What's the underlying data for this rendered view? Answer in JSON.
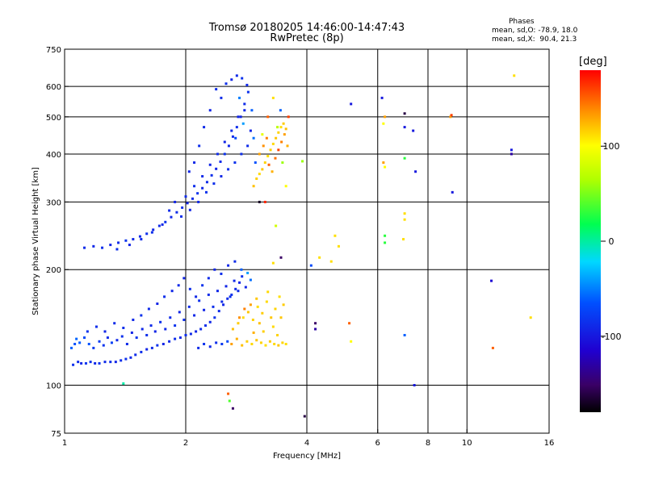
{
  "header": {
    "title": "Tromsø 20180205 14:46:00-14:47:43",
    "subtitle": "RwPretec (8p)"
  },
  "phase_stats": {
    "heading": "Phases",
    "line_o": "mean, sd,O: -78.9, 18.0",
    "line_x": "mean, sd,X:  90.4, 21.3"
  },
  "colorbar": {
    "unit": "[deg]",
    "ticks": [
      {
        "value": 100,
        "label": "100"
      },
      {
        "value": 0,
        "label": "0"
      },
      {
        "value": -100,
        "label": "-100"
      }
    ],
    "range": [
      -180,
      180
    ]
  },
  "chart_data": {
    "type": "scatter",
    "title": "Tromsø 20180205 14:46:00-14:47:43",
    "subtitle": "RwPretec (8p)",
    "xlabel": "Frequency [MHz]",
    "ylabel": "Stationary phase Virtual Height [km]",
    "xscale": "log",
    "yscale": "log",
    "xlim": [
      1,
      16
    ],
    "ylim": [
      75,
      750
    ],
    "xticks": [
      {
        "value": 1,
        "label": "1"
      },
      {
        "value": 2,
        "label": "2"
      },
      {
        "value": 4,
        "label": "4"
      },
      {
        "value": 6,
        "label": "6"
      },
      {
        "value": 8,
        "label": "8"
      },
      {
        "value": 10,
        "label": "10"
      },
      {
        "value": 16,
        "label": "16"
      }
    ],
    "yticks": [
      {
        "value": 75,
        "label": "75"
      },
      {
        "value": 100,
        "label": "100"
      },
      {
        "value": 200,
        "label": "200"
      },
      {
        "value": 300,
        "label": "300"
      },
      {
        "value": 400,
        "label": "400"
      },
      {
        "value": 500,
        "label": "500"
      },
      {
        "value": 600,
        "label": "600"
      },
      {
        "value": 750,
        "label": "750"
      }
    ],
    "grid": true,
    "color_scale": "phase [deg], -180 (black) to 180 (red)",
    "points": [
      [
        1.05,
        113,
        -85
      ],
      [
        1.08,
        115,
        -88
      ],
      [
        1.1,
        114,
        -90
      ],
      [
        1.13,
        114,
        -82
      ],
      [
        1.16,
        115,
        -86
      ],
      [
        1.19,
        114,
        -90
      ],
      [
        1.22,
        114,
        -84
      ],
      [
        1.26,
        115,
        -88
      ],
      [
        1.3,
        115,
        -86
      ],
      [
        1.34,
        115,
        -92
      ],
      [
        1.38,
        116,
        -87
      ],
      [
        1.42,
        117,
        -85
      ],
      [
        1.46,
        118,
        -90
      ],
      [
        1.5,
        120,
        -88
      ],
      [
        1.55,
        122,
        -86
      ],
      [
        1.6,
        124,
        -92
      ],
      [
        1.65,
        125,
        -89
      ],
      [
        1.7,
        127,
        -84
      ],
      [
        1.76,
        128,
        -91
      ],
      [
        1.82,
        130,
        -88
      ],
      [
        1.88,
        132,
        -87
      ],
      [
        1.94,
        133,
        -90
      ],
      [
        2.0,
        135,
        -86
      ],
      [
        2.06,
        136,
        -89
      ],
      [
        2.12,
        138,
        -92
      ],
      [
        2.18,
        140,
        -88
      ],
      [
        2.24,
        143,
        -86
      ],
      [
        2.3,
        146,
        -90
      ],
      [
        2.36,
        150,
        -85
      ],
      [
        2.42,
        156,
        -88
      ],
      [
        2.48,
        162,
        -91
      ],
      [
        2.54,
        168,
        -87
      ],
      [
        2.6,
        172,
        -84
      ],
      [
        2.66,
        178,
        -89
      ],
      [
        2.72,
        185,
        -92
      ],
      [
        1.04,
        125,
        -60
      ],
      [
        1.06,
        128,
        -65
      ],
      [
        1.07,
        132,
        -58
      ],
      [
        1.09,
        129,
        -62
      ],
      [
        1.12,
        133,
        -70
      ],
      [
        1.15,
        128,
        -64
      ],
      [
        1.18,
        125,
        -80
      ],
      [
        1.22,
        130,
        -78
      ],
      [
        1.25,
        127,
        -82
      ],
      [
        1.28,
        133,
        -88
      ],
      [
        1.31,
        129,
        -75
      ],
      [
        1.35,
        131,
        -90
      ],
      [
        1.39,
        134,
        -85
      ],
      [
        1.43,
        128,
        -88
      ],
      [
        1.47,
        137,
        -92
      ],
      [
        1.51,
        133,
        -84
      ],
      [
        1.56,
        140,
        -90
      ],
      [
        1.6,
        135,
        -86
      ],
      [
        1.64,
        143,
        -88
      ],
      [
        1.68,
        138,
        -92
      ],
      [
        1.73,
        146,
        -85
      ],
      [
        1.78,
        140,
        -90
      ],
      [
        1.83,
        150,
        -88
      ],
      [
        1.88,
        143,
        -84
      ],
      [
        1.93,
        155,
        -92
      ],
      [
        1.98,
        148,
        -86
      ],
      [
        2.04,
        160,
        -88
      ],
      [
        2.1,
        152,
        -90
      ],
      [
        2.16,
        166,
        -85
      ],
      [
        2.22,
        157,
        -92
      ],
      [
        2.28,
        172,
        -88
      ],
      [
        2.34,
        160,
        -86
      ],
      [
        2.4,
        176,
        -90
      ],
      [
        2.46,
        165,
        -88
      ],
      [
        2.52,
        181,
        -92
      ],
      [
        2.58,
        170,
        -86
      ],
      [
        2.64,
        187,
        -90
      ],
      [
        2.7,
        176,
        -88
      ],
      [
        2.76,
        192,
        -85
      ],
      [
        2.82,
        180,
        -92
      ],
      [
        1.14,
        138,
        -84
      ],
      [
        1.2,
        142,
        -86
      ],
      [
        1.26,
        138,
        -92
      ],
      [
        1.33,
        145,
        -88
      ],
      [
        1.4,
        141,
        -86
      ],
      [
        1.48,
        148,
        -90
      ],
      [
        1.55,
        152,
        -84
      ],
      [
        1.62,
        158,
        -88
      ],
      [
        1.7,
        163,
        -92
      ],
      [
        1.77,
        170,
        -86
      ],
      [
        1.85,
        176,
        -90
      ],
      [
        1.92,
        182,
        -88
      ],
      [
        1.98,
        190,
        -92
      ],
      [
        2.05,
        178,
        -86
      ],
      [
        2.12,
        170,
        -90
      ],
      [
        2.2,
        182,
        -84
      ],
      [
        2.28,
        190,
        -88
      ],
      [
        2.36,
        200,
        -92
      ],
      [
        2.45,
        195,
        -86
      ],
      [
        2.55,
        205,
        -90
      ],
      [
        2.65,
        210,
        -88
      ],
      [
        2.75,
        200,
        -60
      ],
      [
        2.85,
        196,
        -40
      ],
      [
        2.9,
        188,
        -55
      ],
      [
        2.15,
        125,
        -88
      ],
      [
        2.22,
        128,
        -84
      ],
      [
        2.3,
        126,
        -90
      ],
      [
        2.38,
        129,
        -86
      ],
      [
        2.46,
        128,
        -80
      ],
      [
        2.54,
        130,
        -70
      ],
      [
        2.6,
        128,
        130
      ],
      [
        2.68,
        132,
        125
      ],
      [
        2.76,
        127,
        120
      ],
      [
        2.84,
        130,
        115
      ],
      [
        2.92,
        128,
        112
      ],
      [
        3.0,
        131,
        118
      ],
      [
        3.08,
        129,
        114
      ],
      [
        3.16,
        127,
        110
      ],
      [
        3.24,
        130,
        116
      ],
      [
        3.32,
        128,
        112
      ],
      [
        3.4,
        127,
        118
      ],
      [
        3.48,
        129,
        114
      ],
      [
        3.55,
        128,
        110
      ],
      [
        2.62,
        140,
        120
      ],
      [
        2.7,
        145,
        116
      ],
      [
        2.78,
        150,
        112
      ],
      [
        2.86,
        155,
        118
      ],
      [
        2.94,
        148,
        114
      ],
      [
        3.02,
        160,
        110
      ],
      [
        3.1,
        154,
        116
      ],
      [
        3.18,
        165,
        112
      ],
      [
        3.26,
        150,
        118
      ],
      [
        3.34,
        158,
        114
      ],
      [
        3.42,
        170,
        110
      ],
      [
        3.5,
        162,
        116
      ],
      [
        3.2,
        175,
        112
      ],
      [
        3.0,
        168,
        118
      ],
      [
        2.9,
        162,
        130
      ],
      [
        2.8,
        158,
        140
      ],
      [
        2.72,
        150,
        135
      ],
      [
        3.05,
        145,
        120
      ],
      [
        3.12,
        138,
        115
      ],
      [
        3.3,
        142,
        112
      ],
      [
        3.45,
        150,
        118
      ],
      [
        3.38,
        135,
        114
      ],
      [
        2.95,
        137,
        125
      ],
      [
        1.4,
        101,
        0
      ],
      [
        2.55,
        95,
        150
      ],
      [
        2.57,
        91,
        40
      ],
      [
        2.62,
        87,
        -150
      ],
      [
        3.95,
        83,
        -160
      ],
      [
        1.12,
        228,
        -88
      ],
      [
        1.18,
        230,
        -90
      ],
      [
        1.24,
        228,
        -86
      ],
      [
        1.3,
        232,
        -92
      ],
      [
        1.36,
        235,
        -88
      ],
      [
        1.42,
        238,
        -84
      ],
      [
        1.48,
        240,
        -90
      ],
      [
        1.54,
        244,
        -88
      ],
      [
        1.6,
        248,
        -86
      ],
      [
        1.66,
        254,
        -92
      ],
      [
        1.72,
        260,
        -88
      ],
      [
        1.78,
        266,
        -84
      ],
      [
        1.84,
        274,
        -90
      ],
      [
        1.9,
        282,
        -88
      ],
      [
        1.96,
        290,
        -86
      ],
      [
        2.02,
        298,
        -92
      ],
      [
        2.08,
        306,
        -88
      ],
      [
        2.14,
        316,
        -84
      ],
      [
        2.2,
        326,
        -90
      ],
      [
        2.26,
        338,
        -88
      ],
      [
        2.32,
        352,
        -86
      ],
      [
        2.38,
        366,
        -92
      ],
      [
        2.44,
        382,
        -88
      ],
      [
        2.5,
        400,
        -84
      ],
      [
        2.56,
        420,
        -90
      ],
      [
        2.62,
        444,
        -88
      ],
      [
        2.68,
        470,
        -86
      ],
      [
        2.74,
        500,
        -92
      ],
      [
        2.8,
        540,
        -88
      ],
      [
        2.86,
        580,
        -84
      ],
      [
        1.35,
        226,
        -86
      ],
      [
        1.45,
        232,
        -92
      ],
      [
        1.55,
        240,
        -88
      ],
      [
        1.65,
        250,
        -86
      ],
      [
        1.75,
        262,
        -90
      ],
      [
        1.82,
        285,
        -88
      ],
      [
        1.88,
        300,
        -92
      ],
      [
        1.95,
        275,
        -86
      ],
      [
        2.0,
        310,
        -88
      ],
      [
        2.05,
        286,
        -92
      ],
      [
        2.1,
        330,
        -86
      ],
      [
        2.15,
        300,
        -90
      ],
      [
        2.2,
        350,
        -88
      ],
      [
        2.25,
        318,
        -84
      ],
      [
        2.3,
        375,
        -92
      ],
      [
        2.35,
        335,
        -86
      ],
      [
        2.4,
        400,
        -88
      ],
      [
        2.45,
        350,
        -90
      ],
      [
        2.5,
        430,
        -92
      ],
      [
        2.55,
        365,
        -86
      ],
      [
        2.6,
        460,
        -88
      ],
      [
        2.65,
        380,
        -84
      ],
      [
        2.7,
        500,
        -92
      ],
      [
        2.75,
        400,
        -86
      ],
      [
        2.8,
        520,
        -90
      ],
      [
        2.85,
        420,
        -88
      ],
      [
        2.9,
        460,
        -92
      ],
      [
        2.45,
        560,
        -88
      ],
      [
        2.52,
        610,
        -86
      ],
      [
        2.6,
        625,
        -92
      ],
      [
        2.68,
        640,
        -88
      ],
      [
        2.76,
        630,
        -84
      ],
      [
        2.84,
        605,
        -90
      ],
      [
        2.38,
        590,
        -86
      ],
      [
        2.3,
        520,
        -92
      ],
      [
        2.22,
        470,
        -88
      ],
      [
        2.16,
        420,
        -86
      ],
      [
        2.1,
        380,
        -90
      ],
      [
        2.04,
        360,
        -92
      ],
      [
        2.72,
        560,
        -50
      ],
      [
        2.78,
        480,
        -40
      ],
      [
        2.66,
        440,
        -70
      ],
      [
        2.92,
        520,
        -60
      ],
      [
        2.95,
        440,
        -55
      ],
      [
        2.98,
        380,
        -65
      ],
      [
        2.95,
        330,
        120
      ],
      [
        3.0,
        345,
        115
      ],
      [
        3.05,
        355,
        112
      ],
      [
        3.1,
        365,
        118
      ],
      [
        3.15,
        380,
        114
      ],
      [
        3.2,
        395,
        110
      ],
      [
        3.25,
        410,
        116
      ],
      [
        3.3,
        425,
        112
      ],
      [
        3.35,
        440,
        118
      ],
      [
        3.4,
        455,
        114
      ],
      [
        3.45,
        470,
        110
      ],
      [
        3.5,
        480,
        116
      ],
      [
        3.55,
        465,
        120
      ],
      [
        3.05,
        400,
        130
      ],
      [
        3.12,
        420,
        135
      ],
      [
        3.18,
        440,
        140
      ],
      [
        3.22,
        375,
        150
      ],
      [
        3.28,
        360,
        125
      ],
      [
        3.34,
        390,
        145
      ],
      [
        3.4,
        410,
        160
      ],
      [
        3.46,
        430,
        140
      ],
      [
        3.52,
        450,
        130
      ],
      [
        3.58,
        420,
        125
      ],
      [
        3.2,
        500,
        150
      ],
      [
        3.3,
        560,
        110
      ],
      [
        3.1,
        450,
        90
      ],
      [
        3.48,
        380,
        60
      ],
      [
        3.38,
        470,
        70
      ],
      [
        3.44,
        520,
        -60
      ],
      [
        3.6,
        500,
        160
      ],
      [
        3.15,
        300,
        170
      ],
      [
        3.55,
        330,
        100
      ],
      [
        3.05,
        300,
        -170
      ],
      [
        3.35,
        260,
        80
      ],
      [
        3.45,
        215,
        -150
      ],
      [
        3.3,
        208,
        110
      ],
      [
        4.3,
        215,
        110
      ],
      [
        4.7,
        245,
        110
      ],
      [
        4.8,
        230,
        110
      ],
      [
        4.6,
        210,
        110
      ],
      [
        5.15,
        540,
        -100
      ],
      [
        6.15,
        560,
        -100
      ],
      [
        6.25,
        500,
        130
      ],
      [
        6.2,
        480,
        100
      ],
      [
        6.2,
        380,
        130
      ],
      [
        6.25,
        370,
        100
      ],
      [
        6.25,
        245,
        30
      ],
      [
        6.25,
        235,
        30
      ],
      [
        7.0,
        510,
        -160
      ],
      [
        7.0,
        470,
        -100
      ],
      [
        7.0,
        390,
        30
      ],
      [
        7.0,
        280,
        110
      ],
      [
        7.0,
        270,
        110
      ],
      [
        7.35,
        460,
        -100
      ],
      [
        7.45,
        360,
        -100
      ],
      [
        7.4,
        100,
        -100
      ],
      [
        7.0,
        135,
        -60
      ],
      [
        6.95,
        240,
        110
      ],
      [
        9.1,
        500,
        130
      ],
      [
        9.15,
        505,
        160
      ],
      [
        9.2,
        318,
        -100
      ],
      [
        11.5,
        187,
        -110
      ],
      [
        11.6,
        125,
        150
      ],
      [
        12.9,
        400,
        -130
      ],
      [
        12.9,
        410,
        -100
      ],
      [
        13.1,
        640,
        110
      ],
      [
        14.4,
        150,
        110
      ],
      [
        4.2,
        145,
        -150
      ],
      [
        4.2,
        140,
        -130
      ],
      [
        5.1,
        145,
        150
      ],
      [
        5.15,
        130,
        100
      ],
      [
        4.1,
        205,
        -70
      ],
      [
        3.9,
        383,
        60
      ]
    ]
  }
}
